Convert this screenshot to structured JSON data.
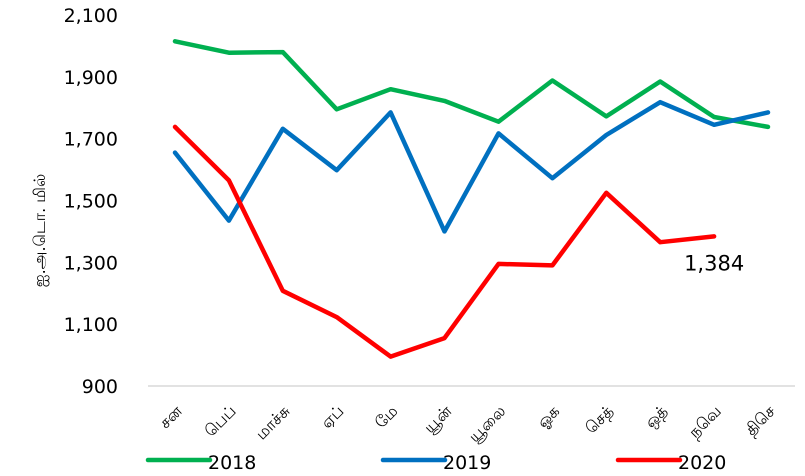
{
  "chart_data": {
    "type": "line",
    "title": "",
    "xlabel": "",
    "ylabel": "ஐ.அ.டொ. மில்",
    "ylim": [
      900,
      2100
    ],
    "yticks": [
      900,
      1100,
      1300,
      1500,
      1700,
      1900,
      2100
    ],
    "ytick_labels": [
      "900",
      "1,100",
      "1,300",
      "1,500",
      "1,700",
      "1,900",
      "2,100"
    ],
    "categories": [
      "சன",
      "பெப்",
      "மாச்சு",
      "ஏப்",
      "மே",
      "யூன்",
      "யூலை",
      "ஓக",
      "செத்",
      "ஒத்",
      "நவெ",
      "திசெ"
    ],
    "grid": false,
    "legend_position": "bottom",
    "series": [
      {
        "name": "2018",
        "color": "#00b050",
        "values": [
          2015,
          1978,
          1980,
          1795,
          1860,
          1822,
          1755,
          1888,
          1772,
          1885,
          1770,
          1738
        ]
      },
      {
        "name": "2019",
        "color": "#0070c0",
        "values": [
          1655,
          1435,
          1732,
          1598,
          1785,
          1400,
          1717,
          1572,
          1712,
          1818,
          1745,
          1785
        ]
      },
      {
        "name": "2020",
        "color": "#ff0000",
        "values": [
          1738,
          1565,
          1208,
          1123,
          995,
          1055,
          1295,
          1290,
          1525,
          1365,
          1384,
          null
        ]
      }
    ],
    "annotations": [
      {
        "text": "1,384",
        "series": "2020",
        "category": "நவெ"
      }
    ]
  }
}
